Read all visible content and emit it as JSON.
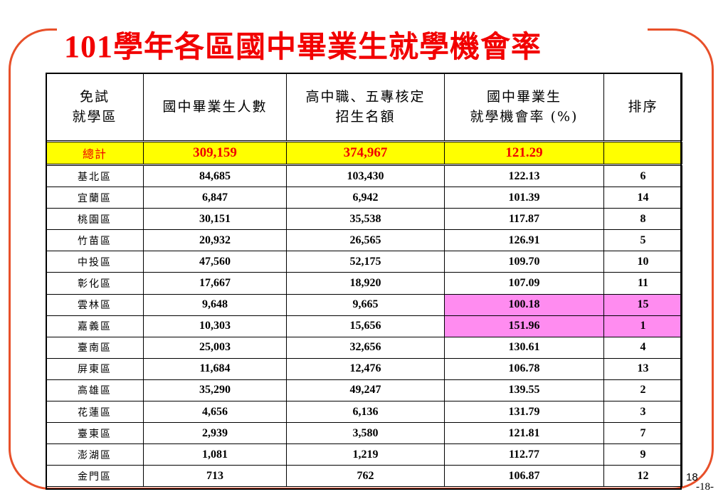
{
  "title": {
    "year": "101",
    "text": "學年各區國中畢業生就學機會率"
  },
  "table": {
    "headers": {
      "district": [
        "免試",
        "就學區"
      ],
      "graduates": "國中畢業生人數",
      "quota": [
        "高中職、五專核定",
        "招生名額"
      ],
      "rate": [
        "國中畢業生",
        "就學機會率 (%)"
      ],
      "rank": "排序"
    },
    "total": {
      "label": "總計",
      "graduates": "309,159",
      "quota": "374,967",
      "rate": "121.29",
      "rank": ""
    },
    "rows": [
      {
        "district": "基北區",
        "graduates": "84,685",
        "quota": "103,430",
        "rate": "122.13",
        "rank": "6"
      },
      {
        "district": "宜蘭區",
        "graduates": "6,847",
        "quota": "6,942",
        "rate": "101.39",
        "rank": "14"
      },
      {
        "district": "桃園區",
        "graduates": "30,151",
        "quota": "35,538",
        "rate": "117.87",
        "rank": "8"
      },
      {
        "district": "竹苗區",
        "graduates": "20,932",
        "quota": "26,565",
        "rate": "126.91",
        "rank": "5"
      },
      {
        "district": "中投區",
        "graduates": "47,560",
        "quota": "52,175",
        "rate": "109.70",
        "rank": "10"
      },
      {
        "district": "彰化區",
        "graduates": "17,667",
        "quota": "18,920",
        "rate": "107.09",
        "rank": "11"
      },
      {
        "district": "雲林區",
        "graduates": "9,648",
        "quota": "9,665",
        "rate": "100.18",
        "rank": "15"
      },
      {
        "district": "嘉義區",
        "graduates": "10,303",
        "quota": "15,656",
        "rate": "151.96",
        "rank": "1"
      },
      {
        "district": "臺南區",
        "graduates": "25,003",
        "quota": "32,656",
        "rate": "130.61",
        "rank": "4"
      },
      {
        "district": "屏東區",
        "graduates": "11,684",
        "quota": "12,476",
        "rate": "106.78",
        "rank": "13"
      },
      {
        "district": "高雄區",
        "graduates": "35,290",
        "quota": "49,247",
        "rate": "139.55",
        "rank": "2"
      },
      {
        "district": "花蓮區",
        "graduates": "4,656",
        "quota": "6,136",
        "rate": "131.79",
        "rank": "3"
      },
      {
        "district": "臺東區",
        "graduates": "2,939",
        "quota": "3,580",
        "rate": "121.81",
        "rank": "7"
      },
      {
        "district": "澎湖區",
        "graduates": "1,081",
        "quota": "1,219",
        "rate": "112.77",
        "rank": "9"
      },
      {
        "district": "金門區",
        "graduates": "713",
        "quota": "762",
        "rate": "106.87",
        "rank": "12"
      }
    ]
  },
  "colors": {
    "title": "#f20000",
    "frame": "#e8502a",
    "total_bg": "#ffff00",
    "total_text": "#f00000",
    "highlight": "#ff8cf0"
  },
  "footer": {
    "page_number": "18",
    "page_label": "-18-"
  }
}
